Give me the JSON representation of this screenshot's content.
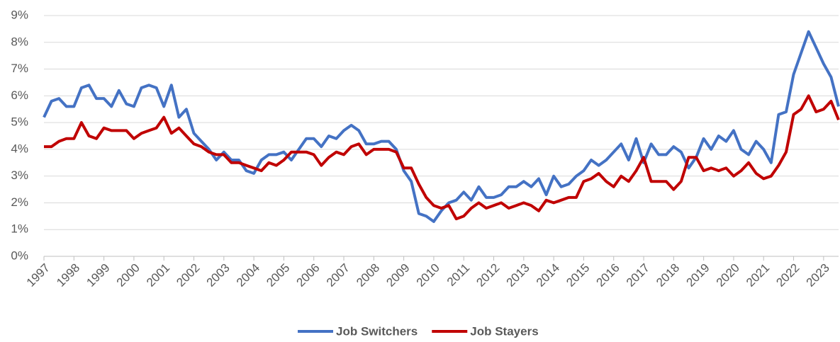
{
  "chart_data": {
    "type": "line",
    "x": [
      1997,
      1997.25,
      1997.5,
      1997.75,
      1998,
      1998.25,
      1998.5,
      1998.75,
      1999,
      1999.25,
      1999.5,
      1999.75,
      2000,
      2000.25,
      2000.5,
      2000.75,
      2001,
      2001.25,
      2001.5,
      2001.75,
      2002,
      2002.25,
      2002.5,
      2002.75,
      2003,
      2003.25,
      2003.5,
      2003.75,
      2004,
      2004.25,
      2004.5,
      2004.75,
      2005,
      2005.25,
      2005.5,
      2005.75,
      2006,
      2006.25,
      2006.5,
      2006.75,
      2007,
      2007.25,
      2007.5,
      2007.75,
      2008,
      2008.25,
      2008.5,
      2008.75,
      2009,
      2009.25,
      2009.5,
      2009.75,
      2010,
      2010.25,
      2010.5,
      2010.75,
      2011,
      2011.25,
      2011.5,
      2011.75,
      2012,
      2012.25,
      2012.5,
      2012.75,
      2013,
      2013.25,
      2013.5,
      2013.75,
      2014,
      2014.25,
      2014.5,
      2014.75,
      2015,
      2015.25,
      2015.5,
      2015.75,
      2016,
      2016.25,
      2016.5,
      2016.75,
      2017,
      2017.25,
      2017.5,
      2017.75,
      2018,
      2018.25,
      2018.5,
      2018.75,
      2019,
      2019.25,
      2019.5,
      2019.75,
      2020,
      2020.25,
      2020.5,
      2020.75,
      2021,
      2021.25,
      2021.5,
      2021.75,
      2022,
      2022.25,
      2022.5,
      2022.75,
      2023,
      2023.25,
      2023.5
    ],
    "series": [
      {
        "name": "Job Switchers",
        "color": "#4472c4",
        "values": [
          5.2,
          5.8,
          5.9,
          5.6,
          5.6,
          6.3,
          6.4,
          5.9,
          5.9,
          5.6,
          6.2,
          5.7,
          5.6,
          6.3,
          6.4,
          6.3,
          5.6,
          6.4,
          5.2,
          5.5,
          4.6,
          4.3,
          4.0,
          3.6,
          3.9,
          3.6,
          3.6,
          3.2,
          3.1,
          3.6,
          3.8,
          3.8,
          3.9,
          3.6,
          4.0,
          4.4,
          4.4,
          4.1,
          4.5,
          4.4,
          4.7,
          4.9,
          4.7,
          4.2,
          4.2,
          4.3,
          4.3,
          4.0,
          3.2,
          2.8,
          1.6,
          1.5,
          1.3,
          1.7,
          2.0,
          2.1,
          2.4,
          2.1,
          2.6,
          2.2,
          2.2,
          2.3,
          2.6,
          2.6,
          2.8,
          2.6,
          2.9,
          2.3,
          3.0,
          2.6,
          2.7,
          3.0,
          3.2,
          3.6,
          3.4,
          3.6,
          3.9,
          4.2,
          3.6,
          4.4,
          3.5,
          4.2,
          3.8,
          3.8,
          4.1,
          3.9,
          3.3,
          3.7,
          4.4,
          4.0,
          4.5,
          4.3,
          4.7,
          4.0,
          3.8,
          4.3,
          4.0,
          3.5,
          5.3,
          5.4,
          6.8,
          7.6,
          8.4,
          7.8,
          7.2,
          6.7,
          5.6
        ]
      },
      {
        "name": "Job Stayers",
        "color": "#c00000",
        "values": [
          4.1,
          4.1,
          4.3,
          4.4,
          4.4,
          5.0,
          4.5,
          4.4,
          4.8,
          4.7,
          4.7,
          4.7,
          4.4,
          4.6,
          4.7,
          4.8,
          5.2,
          4.6,
          4.8,
          4.5,
          4.2,
          4.1,
          3.9,
          3.8,
          3.8,
          3.5,
          3.5,
          3.4,
          3.3,
          3.2,
          3.5,
          3.4,
          3.6,
          3.9,
          3.9,
          3.9,
          3.8,
          3.4,
          3.7,
          3.9,
          3.8,
          4.1,
          4.2,
          3.8,
          4.0,
          4.0,
          4.0,
          3.9,
          3.3,
          3.3,
          2.7,
          2.2,
          1.9,
          1.8,
          1.9,
          1.4,
          1.5,
          1.8,
          2.0,
          1.8,
          1.9,
          2.0,
          1.8,
          1.9,
          2.0,
          1.9,
          1.7,
          2.1,
          2.0,
          2.1,
          2.2,
          2.2,
          2.8,
          2.9,
          3.1,
          2.8,
          2.6,
          3.0,
          2.8,
          3.2,
          3.7,
          2.8,
          2.8,
          2.8,
          2.5,
          2.8,
          3.7,
          3.7,
          3.2,
          3.3,
          3.2,
          3.3,
          3.0,
          3.2,
          3.5,
          3.1,
          2.9,
          3.0,
          3.4,
          3.9,
          5.3,
          5.5,
          6.0,
          5.4,
          5.5,
          5.8,
          5.1
        ]
      }
    ],
    "xlim": [
      1997,
      2023.5
    ],
    "xticks": [
      1997,
      1998,
      1999,
      2000,
      2001,
      2002,
      2003,
      2004,
      2005,
      2006,
      2007,
      2008,
      2009,
      2010,
      2011,
      2012,
      2013,
      2014,
      2015,
      2016,
      2017,
      2018,
      2019,
      2020,
      2021,
      2022,
      2023
    ],
    "ylim": [
      0,
      9
    ],
    "yticks": [
      {
        "value": 0,
        "label": "0%"
      },
      {
        "value": 1,
        "label": "1%"
      },
      {
        "value": 2,
        "label": "2%"
      },
      {
        "value": 3,
        "label": "3%"
      },
      {
        "value": 4,
        "label": "4%"
      },
      {
        "value": 5,
        "label": "5%"
      },
      {
        "value": 6,
        "label": "6%"
      },
      {
        "value": 7,
        "label": "7%"
      },
      {
        "value": 8,
        "label": "8%"
      },
      {
        "value": 9,
        "label": "9%"
      }
    ],
    "grid": true,
    "legend": "bottom"
  }
}
